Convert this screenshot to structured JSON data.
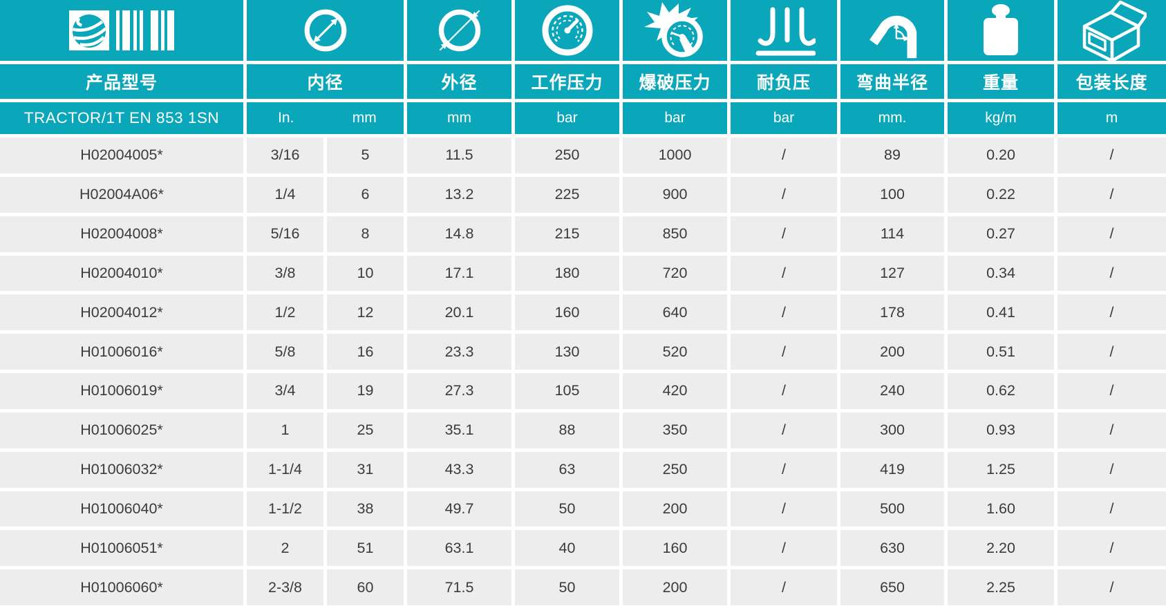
{
  "colors": {
    "teal": "#0aa6ba",
    "row_bg": "#ededed",
    "text_dark": "#3b3b3b",
    "white": "#ffffff"
  },
  "table": {
    "product_header": {
      "label": "产品型号",
      "model": "TRACTOR/1T EN 853 1SN"
    },
    "columns": [
      {
        "id": "inner_diameter",
        "label": "内径",
        "icon": "inner-diameter-icon",
        "units": [
          "In.",
          "mm"
        ]
      },
      {
        "id": "outer_diameter",
        "label": "外径",
        "icon": "outer-diameter-icon",
        "unit": "mm"
      },
      {
        "id": "working_pressure",
        "label": "工作压力",
        "icon": "pressure-gauge-icon",
        "unit": "bar"
      },
      {
        "id": "burst_pressure",
        "label": "爆破压力",
        "icon": "burst-gauge-icon",
        "unit": "bar"
      },
      {
        "id": "vacuum_resistance",
        "label": "耐负压",
        "icon": "vacuum-icon",
        "unit": "bar"
      },
      {
        "id": "bend_radius",
        "label": "弯曲半径",
        "icon": "bend-radius-icon",
        "unit": "mm."
      },
      {
        "id": "weight",
        "label": "重量",
        "icon": "weight-icon",
        "unit": "kg/m"
      },
      {
        "id": "pack_length",
        "label": "包装长度",
        "icon": "package-box-icon",
        "unit": "m"
      }
    ],
    "rows": [
      [
        "H02004005*",
        "3/16",
        "5",
        "11.5",
        "250",
        "1000",
        "/",
        "89",
        "0.20",
        "/"
      ],
      [
        "H02004A06*",
        "1/4",
        "6",
        "13.2",
        "225",
        "900",
        "/",
        "100",
        "0.22",
        "/"
      ],
      [
        "H02004008*",
        "5/16",
        "8",
        "14.8",
        "215",
        "850",
        "/",
        "114",
        "0.27",
        "/"
      ],
      [
        "H02004010*",
        "3/8",
        "10",
        "17.1",
        "180",
        "720",
        "/",
        "127",
        "0.34",
        "/"
      ],
      [
        "H02004012*",
        "1/2",
        "12",
        "20.1",
        "160",
        "640",
        "/",
        "178",
        "0.41",
        "/"
      ],
      [
        "H01006016*",
        "5/8",
        "16",
        "23.3",
        "130",
        "520",
        "/",
        "200",
        "0.51",
        "/"
      ],
      [
        "H01006019*",
        "3/4",
        "19",
        "27.3",
        "105",
        "420",
        "/",
        "240",
        "0.62",
        "/"
      ],
      [
        "H01006025*",
        "1",
        "25",
        "35.1",
        "88",
        "350",
        "/",
        "300",
        "0.93",
        "/"
      ],
      [
        "H01006032*",
        "1-1/4",
        "31",
        "43.3",
        "63",
        "250",
        "/",
        "419",
        "1.25",
        "/"
      ],
      [
        "H01006040*",
        "1-1/2",
        "38",
        "49.7",
        "50",
        "200",
        "/",
        "500",
        "1.60",
        "/"
      ],
      [
        "H01006051*",
        "2",
        "51",
        "63.1",
        "40",
        "160",
        "/",
        "630",
        "2.20",
        "/"
      ],
      [
        "H01006060*",
        "2-3/8",
        "60",
        "71.5",
        "50",
        "200",
        "/",
        "650",
        "2.25",
        "/"
      ]
    ]
  }
}
